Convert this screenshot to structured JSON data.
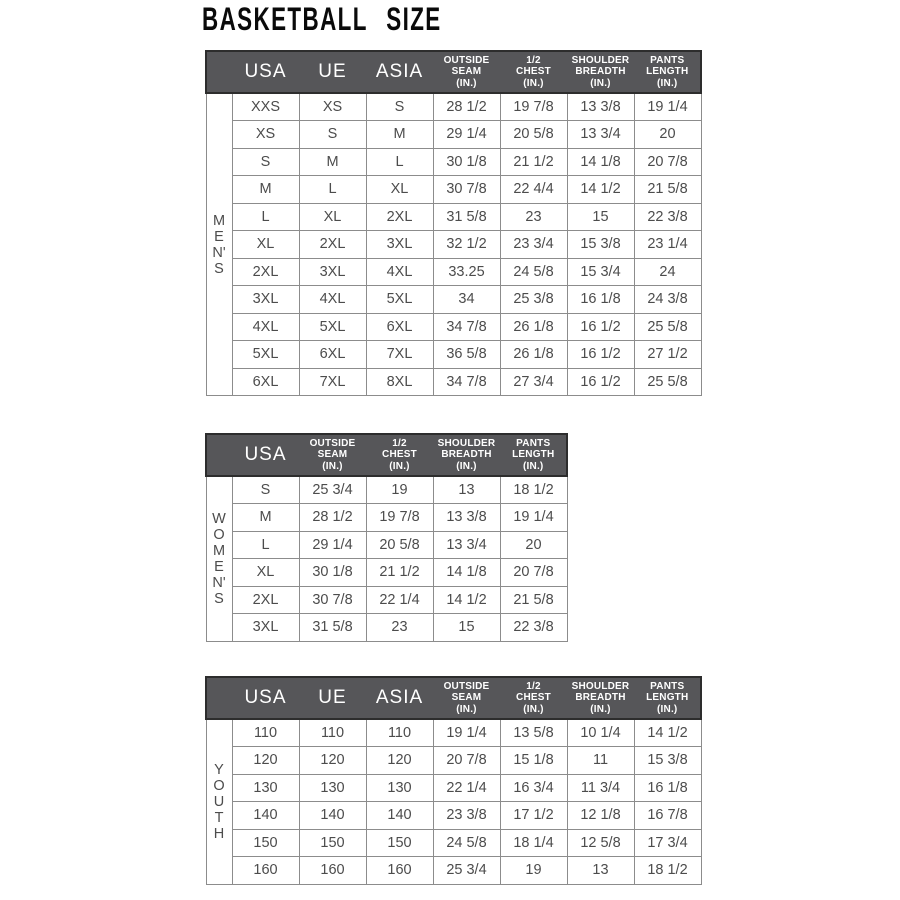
{
  "page_title": "BASKETBALL SIZE",
  "colors": {
    "header_bg": "#565659",
    "header_border": "#2d2d2d",
    "header_text": "#ffffff",
    "body_text": "#4c4c4c",
    "grid_border": "#8c8c8c",
    "title_color": "#0a0a0a",
    "page_bg": "#ffffff"
  },
  "tables": [
    {
      "id": "mens",
      "group_label": "MEN'S",
      "group_lines": [
        "M",
        "E",
        "N'",
        "S"
      ],
      "columns": [
        {
          "label": "USA",
          "size": "lg",
          "lines": [
            "USA"
          ]
        },
        {
          "label": "UE",
          "size": "lg",
          "lines": [
            "UE"
          ]
        },
        {
          "label": "ASIA",
          "size": "lg",
          "lines": [
            "ASIA"
          ]
        },
        {
          "label": "OUTSIDE SEAM (IN.)",
          "size": "sm",
          "lines": [
            "OUTSIDE",
            "SEAM",
            "(IN.)"
          ]
        },
        {
          "label": "1/2 CHEST (IN.)",
          "size": "sm",
          "lines": [
            "1/2",
            "CHEST",
            "(IN.)"
          ]
        },
        {
          "label": "SHOULDER BREADTH (IN.)",
          "size": "sm",
          "lines": [
            "SHOULDER",
            "BREADTH",
            "(IN.)"
          ]
        },
        {
          "label": "PANTS LENGTH (IN.)",
          "size": "sm",
          "lines": [
            "PANTS",
            "LENGTH",
            "(IN.)"
          ]
        }
      ],
      "rows": [
        [
          "XXS",
          "XS",
          "S",
          "28 1/2",
          "19 7/8",
          "13 3/8",
          "19 1/4"
        ],
        [
          "XS",
          "S",
          "M",
          "29 1/4",
          "20 5/8",
          "13 3/4",
          "20"
        ],
        [
          "S",
          "M",
          "L",
          "30 1/8",
          "21 1/2",
          "14 1/8",
          "20 7/8"
        ],
        [
          "M",
          "L",
          "XL",
          "30 7/8",
          "22 4/4",
          "14 1/2",
          "21 5/8"
        ],
        [
          "L",
          "XL",
          "2XL",
          "31 5/8",
          "23",
          "15",
          "22 3/8"
        ],
        [
          "XL",
          "2XL",
          "3XL",
          "32 1/2",
          "23 3/4",
          "15 3/8",
          "23 1/4"
        ],
        [
          "2XL",
          "3XL",
          "4XL",
          "33.25",
          "24 5/8",
          "15 3/4",
          "24"
        ],
        [
          "3XL",
          "4XL",
          "5XL",
          "34",
          "25 3/8",
          "16 1/8",
          "24 3/8"
        ],
        [
          "4XL",
          "5XL",
          "6XL",
          "34 7/8",
          "26 1/8",
          "16 1/2",
          "25 5/8"
        ],
        [
          "5XL",
          "6XL",
          "7XL",
          "36 5/8",
          "26 1/8",
          "16 1/2",
          "27 1/2"
        ],
        [
          "6XL",
          "7XL",
          "8XL",
          "34 7/8",
          "27 3/4",
          "16 1/2",
          "25 5/8"
        ]
      ]
    },
    {
      "id": "womens",
      "group_label": "WOMEN'S",
      "group_lines": [
        "W",
        "O",
        "M",
        "E",
        "N'",
        "S"
      ],
      "columns": [
        {
          "label": "USA",
          "size": "lg",
          "lines": [
            "USA"
          ]
        },
        {
          "label": "OUTSIDE SEAM (IN.)",
          "size": "sm",
          "lines": [
            "OUTSIDE",
            "SEAM",
            "(IN.)"
          ]
        },
        {
          "label": "1/2 CHEST (IN.)",
          "size": "sm",
          "lines": [
            "1/2",
            "CHEST",
            "(IN.)"
          ]
        },
        {
          "label": "SHOULDER BREADTH (IN.)",
          "size": "sm",
          "lines": [
            "SHOULDER",
            "BREADTH",
            "(IN.)"
          ]
        },
        {
          "label": "PANTS LENGTH (IN.)",
          "size": "sm",
          "lines": [
            "PANTS",
            "LENGTH",
            "(IN.)"
          ]
        }
      ],
      "rows": [
        [
          "S",
          "25 3/4",
          "19",
          "13",
          "18 1/2"
        ],
        [
          "M",
          "28 1/2",
          "19 7/8",
          "13 3/8",
          "19 1/4"
        ],
        [
          "L",
          "29 1/4",
          "20 5/8",
          "13 3/4",
          "20"
        ],
        [
          "XL",
          "30 1/8",
          "21 1/2",
          "14 1/8",
          "20 7/8"
        ],
        [
          "2XL",
          "30 7/8",
          "22 1/4",
          "14 1/2",
          "21 5/8"
        ],
        [
          "3XL",
          "31 5/8",
          "23",
          "15",
          "22 3/8"
        ]
      ]
    },
    {
      "id": "youth",
      "group_label": "YOUTH",
      "group_lines": [
        "Y",
        "O",
        "U",
        "T",
        "H"
      ],
      "columns": [
        {
          "label": "USA",
          "size": "lg",
          "lines": [
            "USA"
          ]
        },
        {
          "label": "UE",
          "size": "lg",
          "lines": [
            "UE"
          ]
        },
        {
          "label": "ASIA",
          "size": "lg",
          "lines": [
            "ASIA"
          ]
        },
        {
          "label": "OUTSIDE SEAM (IN.)",
          "size": "sm",
          "lines": [
            "OUTSIDE",
            "SEAM",
            "(IN.)"
          ]
        },
        {
          "label": "1/2 CHEST (IN.)",
          "size": "sm",
          "lines": [
            "1/2",
            "CHEST",
            "(IN.)"
          ]
        },
        {
          "label": "SHOULDER BREADTH (IN.)",
          "size": "sm",
          "lines": [
            "SHOULDER",
            "BREADTH",
            "(IN.)"
          ]
        },
        {
          "label": "PANTS LENGTH (IN.)",
          "size": "sm",
          "lines": [
            "PANTS",
            "LENGTH",
            "(IN.)"
          ]
        }
      ],
      "rows": [
        [
          "110",
          "110",
          "110",
          "19 1/4",
          "13 5/8",
          "10 1/4",
          "14 1/2"
        ],
        [
          "120",
          "120",
          "120",
          "20 7/8",
          "15 1/8",
          "11",
          "15 3/8"
        ],
        [
          "130",
          "130",
          "130",
          "22 1/4",
          "16 3/4",
          "11 3/4",
          "16 1/8"
        ],
        [
          "140",
          "140",
          "140",
          "23 3/8",
          "17 1/2",
          "12 1/8",
          "16 7/8"
        ],
        [
          "150",
          "150",
          "150",
          "24 5/8",
          "18 1/4",
          "12 5/8",
          "17 3/4"
        ],
        [
          "160",
          "160",
          "160",
          "25 3/4",
          "19",
          "13",
          "18 1/2"
        ]
      ]
    }
  ]
}
